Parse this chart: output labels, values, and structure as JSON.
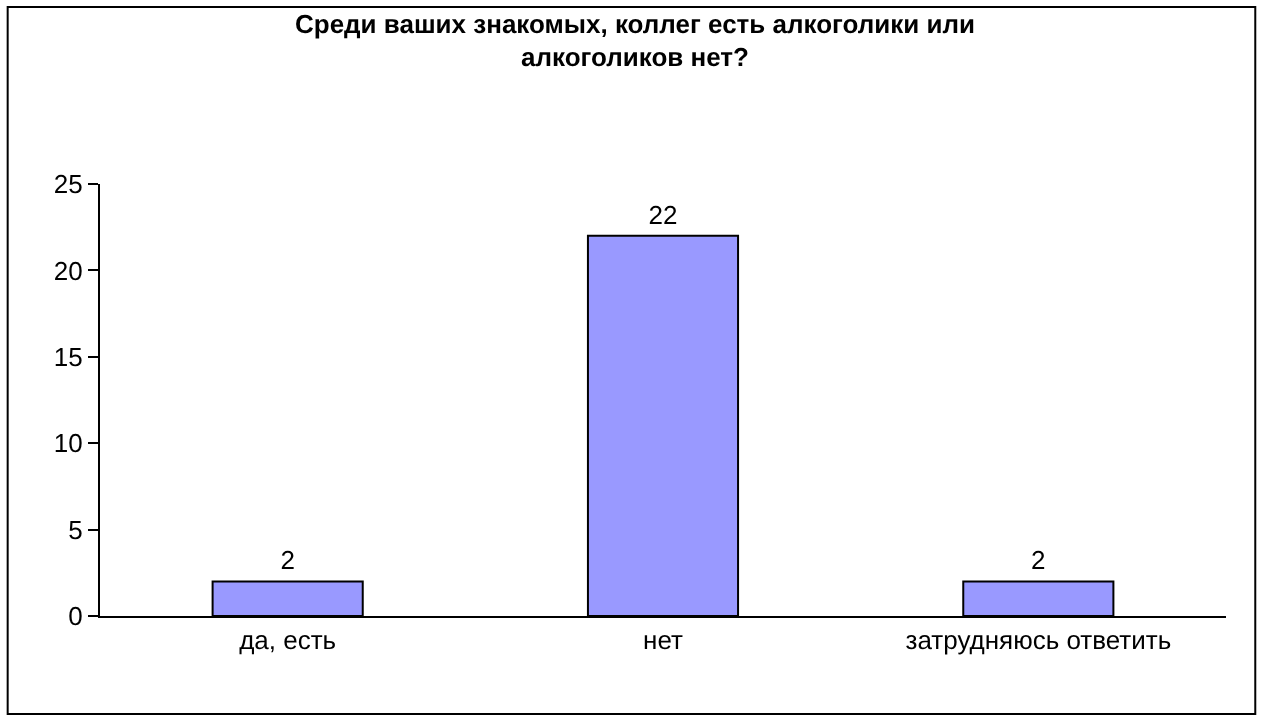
{
  "chart_data": {
    "type": "bar",
    "title": "Среди ваших знакомых, коллег есть алкоголики или\nалкоголиков нет?",
    "categories": [
      "да, есть",
      "нет",
      "затрудняюсь ответить"
    ],
    "values": [
      2,
      22,
      2
    ],
    "color": "#9999ff",
    "ylim": [
      0,
      25
    ],
    "yticks": [
      0,
      5,
      10,
      15,
      20,
      25
    ],
    "data_labels": true,
    "legend": false
  }
}
